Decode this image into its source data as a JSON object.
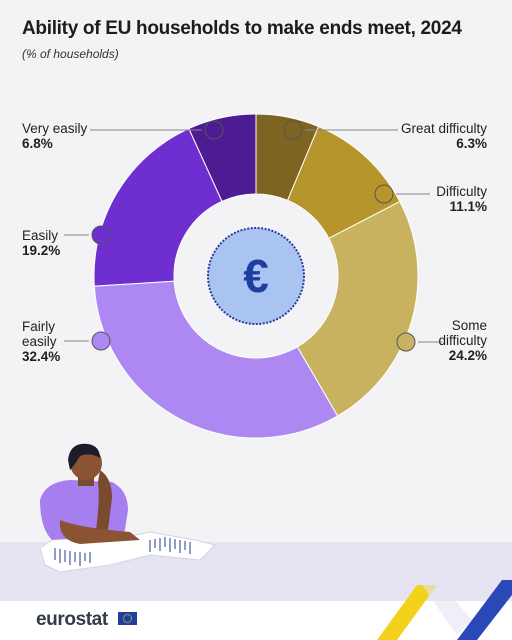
{
  "title": "Ability of EU households to make ends meet, 2024",
  "subtitle": "(% of households)",
  "center_icon": {
    "name": "euro-coin-icon",
    "glyph": "€"
  },
  "chart_data": {
    "type": "pie",
    "donut": true,
    "categories": [
      "Great difficulty",
      "Difficulty",
      "Some difficulty",
      "Fairly easily",
      "Easily",
      "Very easily"
    ],
    "values": [
      6.3,
      11.1,
      24.2,
      32.4,
      19.2,
      6.8
    ],
    "value_labels": [
      "6.3%",
      "11.1%",
      "24.2%",
      "32.4%",
      "19.2%",
      "6.8%"
    ],
    "label_lines": [
      [
        "Great difficulty"
      ],
      [
        "Difficulty"
      ],
      [
        "Some",
        "difficulty"
      ],
      [
        "Fairly",
        "easily"
      ],
      [
        "Easily"
      ],
      [
        "Very easily"
      ]
    ],
    "colors": [
      "#7d6420",
      "#b6962c",
      "#c8b260",
      "#ad88f2",
      "#6f2ed0",
      "#4d1c92"
    ]
  },
  "logo": {
    "text": "eurostat"
  }
}
